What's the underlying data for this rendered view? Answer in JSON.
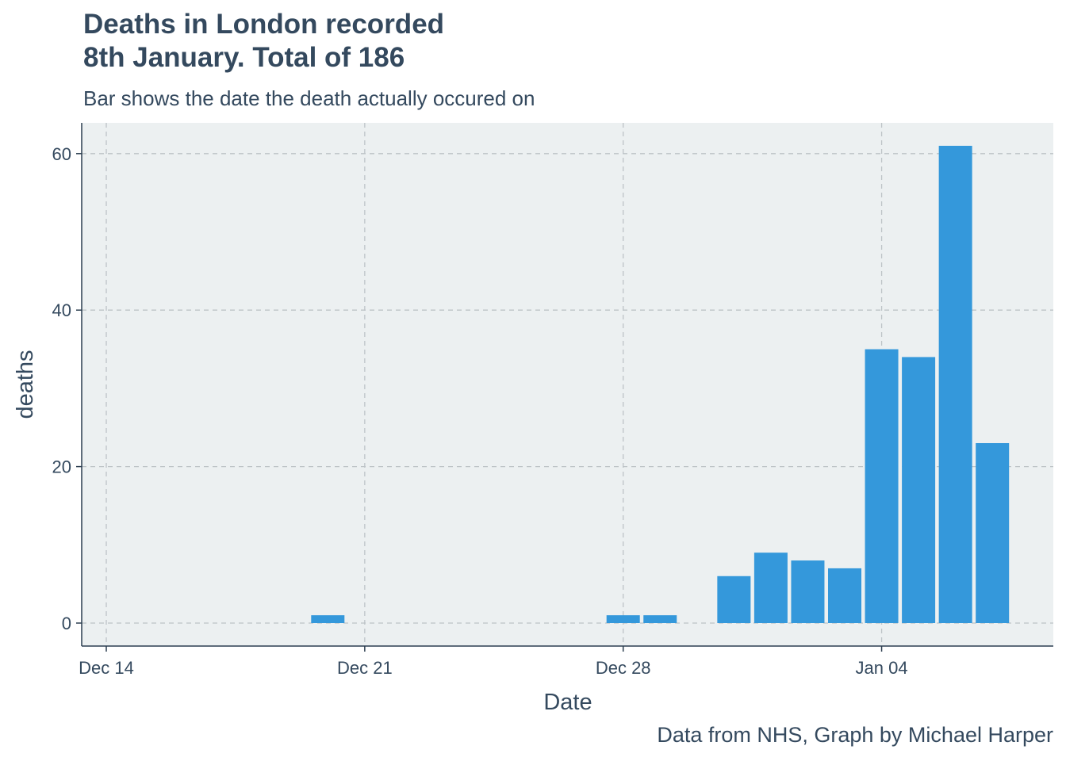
{
  "header": {
    "title_line1": "Deaths in London recorded",
    "title_line2": "8th January. Total of 186",
    "subtitle": "Bar shows the date the death actually occured on"
  },
  "caption": "Data from NHS, Graph by Michael Harper",
  "colors": {
    "bar": "#3498db",
    "panel": "#ecf0f1",
    "grid": "#bdc3c7",
    "text": "#34495e"
  },
  "chart_data": {
    "type": "bar",
    "title": "Deaths in London recorded 8th January. Total of 186",
    "subtitle": "Bar shows the date the death actually occured on",
    "xlabel": "Date",
    "ylabel": "deaths",
    "x_ticks": [
      "Dec 14",
      "Dec 21",
      "Dec 28",
      "Jan 04"
    ],
    "y_ticks": [
      0,
      20,
      40,
      60
    ],
    "xlim": [
      "2020-12-14",
      "2021-01-08"
    ],
    "ylim": [
      0,
      64
    ],
    "grid": true,
    "legend": "none",
    "points": [
      {
        "date": "2020-12-20",
        "deaths": 1
      },
      {
        "date": "2020-12-28",
        "deaths": 1
      },
      {
        "date": "2020-12-29",
        "deaths": 1
      },
      {
        "date": "2020-12-31",
        "deaths": 6
      },
      {
        "date": "2021-01-01",
        "deaths": 9
      },
      {
        "date": "2021-01-02",
        "deaths": 8
      },
      {
        "date": "2021-01-03",
        "deaths": 7
      },
      {
        "date": "2021-01-04",
        "deaths": 35
      },
      {
        "date": "2021-01-05",
        "deaths": 34
      },
      {
        "date": "2021-01-06",
        "deaths": 61
      },
      {
        "date": "2021-01-07",
        "deaths": 23
      }
    ]
  }
}
